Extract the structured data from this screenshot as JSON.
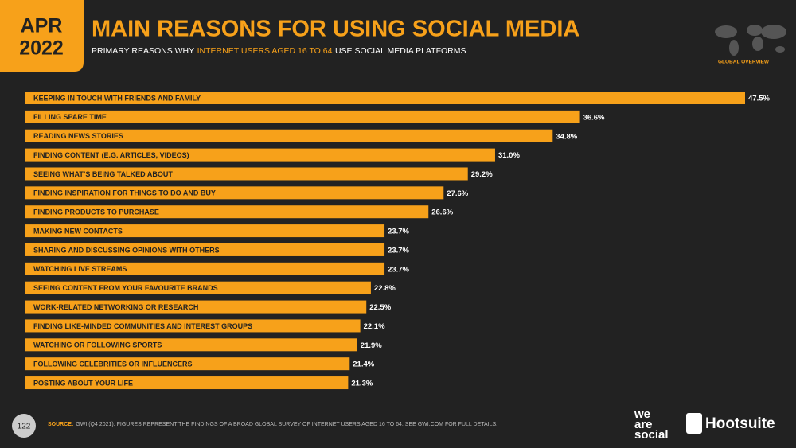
{
  "header": {
    "month": "APR",
    "year": "2022",
    "section": "GLOBAL OVERVIEW"
  },
  "chart_data": {
    "type": "bar",
    "orientation": "horizontal",
    "title": "MAIN REASONS FOR USING SOCIAL MEDIA",
    "subtitle": [
      "PRIMARY REASONS WHY",
      "INTERNET USERS AGED 16 TO 64",
      "USE SOCIAL MEDIA PLATFORMS"
    ],
    "categories": [
      "KEEPING IN TOUCH WITH FRIENDS AND FAMILY",
      "FILLING SPARE TIME",
      "READING NEWS STORIES",
      "FINDING CONTENT (E.G. ARTICLES, VIDEOS)",
      "SEEING WHAT’S BEING TALKED ABOUT",
      "FINDING INSPIRATION FOR THINGS TO DO AND BUY",
      "FINDING PRODUCTS TO PURCHASE",
      "MAKING NEW CONTACTS",
      "SHARING AND DISCUSSING OPINIONS WITH OTHERS",
      "WATCHING LIVE STREAMS",
      "SEEING CONTENT FROM YOUR FAVOURITE BRANDS",
      "WORK-RELATED NETWORKING OR RESEARCH",
      "FINDING LIKE-MINDED COMMUNITIES AND INTEREST GROUPS",
      "WATCHING OR FOLLOWING SPORTS",
      "FOLLOWING CELEBRITIES OR INFLUENCERS",
      "POSTING ABOUT YOUR LIFE"
    ],
    "values": [
      47.5,
      36.6,
      34.8,
      31.0,
      29.2,
      27.6,
      26.6,
      23.7,
      23.7,
      23.7,
      22.8,
      22.5,
      22.1,
      21.9,
      21.4,
      21.3
    ],
    "value_labels": [
      "47.5%",
      "36.6%",
      "34.8%",
      "31.0%",
      "29.2%",
      "27.6%",
      "26.6%",
      "23.7%",
      "23.7%",
      "23.7%",
      "22.8%",
      "22.5%",
      "22.1%",
      "21.9%",
      "21.4%",
      "21.3%"
    ],
    "color": "#f7a11a"
  },
  "footer": {
    "page": "122",
    "source_label": "SOURCE:",
    "source": "GWI (Q4 2021). FIGURES REPRESENT THE FINDINGS OF A BROAD GLOBAL SURVEY OF INTERNET USERS AGED 16 TO 64. SEE GWI.COM FOR FULL DETAILS.",
    "logo_we": "we",
    "logo_are": "are",
    "logo_social": "social",
    "logo_hootsuite": "Hootsuite"
  }
}
